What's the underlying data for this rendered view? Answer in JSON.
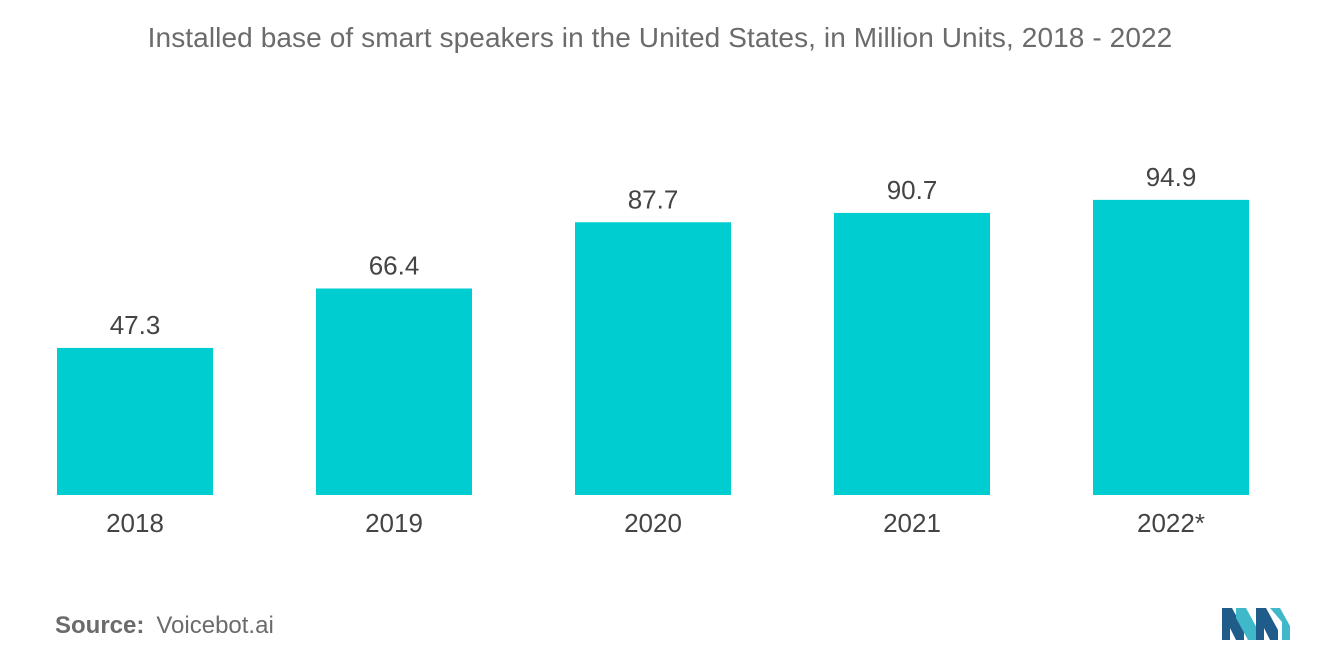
{
  "chart_data": {
    "type": "bar",
    "title": "Installed base of smart speakers in the United States, in Million Units, 2018 - 2022",
    "categories": [
      "2018",
      "2019",
      "2020",
      "2021",
      "2022*"
    ],
    "values": [
      47.3,
      66.4,
      87.7,
      90.7,
      94.9
    ],
    "value_labels": [
      "47.3",
      "66.4",
      "87.7",
      "90.7",
      "94.9"
    ],
    "xlabel": "",
    "ylabel": "",
    "grid": false,
    "legend": "none",
    "bar_color": "#00cdd0"
  },
  "source": {
    "label": "Source:",
    "value": "Voicebot.ai"
  },
  "logo": {
    "icon": "mordor-intelligence-logo-icon",
    "colors": [
      "#1f5c8a",
      "#3fb8c9"
    ]
  }
}
